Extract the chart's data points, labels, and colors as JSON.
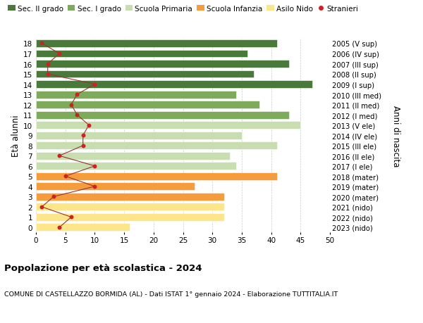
{
  "ages": [
    0,
    1,
    2,
    3,
    4,
    5,
    6,
    7,
    8,
    9,
    10,
    11,
    12,
    13,
    14,
    15,
    16,
    17,
    18
  ],
  "bar_values": [
    16,
    32,
    32,
    32,
    27,
    41,
    34,
    33,
    41,
    35,
    45,
    43,
    38,
    34,
    47,
    37,
    43,
    36,
    41
  ],
  "bar_colors": [
    "#fde68a",
    "#fde68a",
    "#fde68a",
    "#f59c3c",
    "#f59c3c",
    "#f59c3c",
    "#c8ddb0",
    "#c8ddb0",
    "#c8ddb0",
    "#c8ddb0",
    "#c8ddb0",
    "#7eab5b",
    "#7eab5b",
    "#7eab5b",
    "#4a7a3a",
    "#4a7a3a",
    "#4a7a3a",
    "#4a7a3a",
    "#4a7a3a"
  ],
  "stranieri_values": [
    4,
    6,
    1,
    3,
    10,
    5,
    10,
    4,
    8,
    8,
    9,
    7,
    6,
    7,
    10,
    2,
    2,
    4,
    1
  ],
  "right_labels": [
    "2023 (nido)",
    "2022 (nido)",
    "2021 (nido)",
    "2020 (mater)",
    "2019 (mater)",
    "2018 (mater)",
    "2017 (I ele)",
    "2016 (II ele)",
    "2015 (III ele)",
    "2014 (IV ele)",
    "2013 (V ele)",
    "2012 (I med)",
    "2011 (II med)",
    "2010 (III med)",
    "2009 (I sup)",
    "2008 (II sup)",
    "2007 (III sup)",
    "2006 (IV sup)",
    "2005 (V sup)"
  ],
  "ylabel_left": "Età alunni",
  "ylabel_right": "Anni di nascita",
  "xlim": [
    0,
    50
  ],
  "xticks": [
    0,
    5,
    10,
    15,
    20,
    25,
    30,
    35,
    40,
    45,
    50
  ],
  "legend_labels": [
    "Sec. II grado",
    "Sec. I grado",
    "Scuola Primaria",
    "Scuola Infanzia",
    "Asilo Nido",
    "Stranieri"
  ],
  "legend_colors": [
    "#4a7a3a",
    "#7eab5b",
    "#c8ddb0",
    "#f59c3c",
    "#fde68a",
    "#cc2222"
  ],
  "title": "Popolazione per età scolastica - 2024",
  "subtitle": "COMUNE DI CASTELLAZZO BORMIDA (AL) - Dati ISTAT 1° gennaio 2024 - Elaborazione TUTTITALIA.IT",
  "bar_height": 0.75,
  "background_color": "#ffffff",
  "grid_color": "#cccccc",
  "stranieri_color": "#cc2222",
  "stranieri_line_color": "#993333"
}
